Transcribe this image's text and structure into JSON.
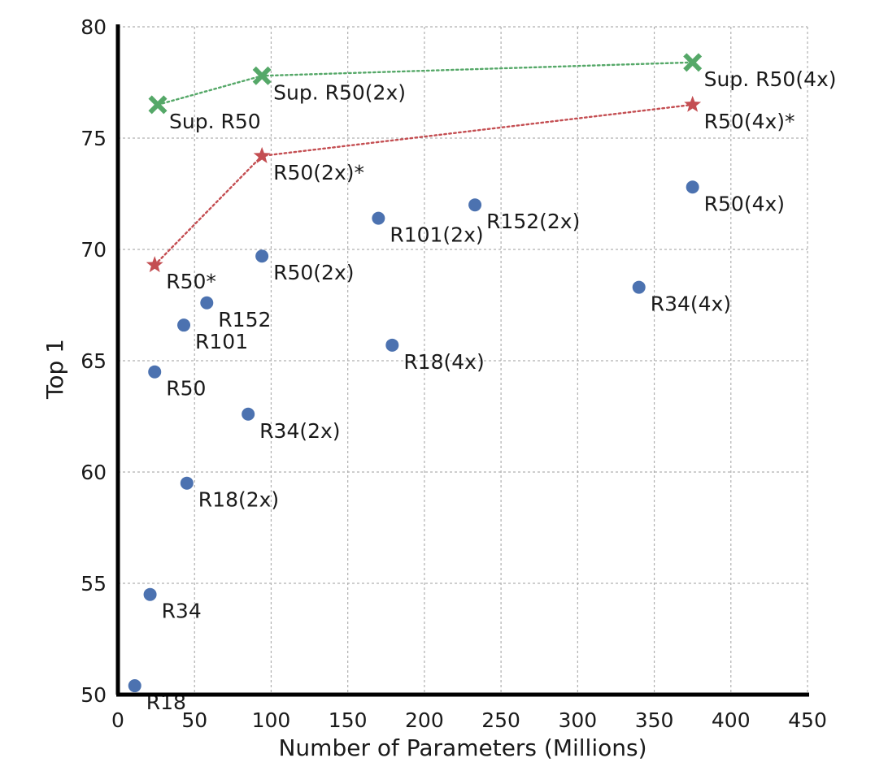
{
  "chart_data": {
    "type": "scatter",
    "title": "",
    "xlabel": "Number of Parameters (Millions)",
    "ylabel": "Top 1",
    "xlim": [
      0,
      450
    ],
    "ylim": [
      50,
      80
    ],
    "xticks": [
      0,
      50,
      100,
      150,
      200,
      250,
      300,
      350,
      400,
      450
    ],
    "yticks": [
      50,
      55,
      60,
      65,
      70,
      75,
      80
    ],
    "grid": true,
    "legend": "none",
    "series": [
      {
        "style": "circle",
        "color": "#4c72b0",
        "connected": false,
        "points": [
          {
            "label": "R18",
            "x": 11,
            "y": 50.4
          },
          {
            "label": "R34",
            "x": 21,
            "y": 54.5
          },
          {
            "label": "R50",
            "x": 24,
            "y": 64.5
          },
          {
            "label": "R101",
            "x": 43,
            "y": 66.6
          },
          {
            "label": "R152",
            "x": 58,
            "y": 67.6
          },
          {
            "label": "R18(2x)",
            "x": 45,
            "y": 59.5
          },
          {
            "label": "R34(2x)",
            "x": 85,
            "y": 62.6
          },
          {
            "label": "R50(2x)",
            "x": 94,
            "y": 69.7
          },
          {
            "label": "R101(2x)",
            "x": 170,
            "y": 71.4
          },
          {
            "label": "R152(2x)",
            "x": 233,
            "y": 72.0
          },
          {
            "label": "R18(4x)",
            "x": 179,
            "y": 65.7
          },
          {
            "label": "R34(4x)",
            "x": 340,
            "y": 68.3
          },
          {
            "label": "R50(4x)",
            "x": 375,
            "y": 72.8
          }
        ]
      },
      {
        "style": "star",
        "color": "#c44e52",
        "connected": true,
        "line_style": "dotted",
        "points": [
          {
            "label": "R50*",
            "x": 24,
            "y": 69.3
          },
          {
            "label": "R50(2x)*",
            "x": 94,
            "y": 74.2
          },
          {
            "label": "R50(4x)*",
            "x": 375,
            "y": 76.5
          }
        ]
      },
      {
        "style": "x-marker",
        "color": "#55a868",
        "connected": true,
        "line_style": "dotted",
        "points": [
          {
            "label": "Sup. R50",
            "x": 26,
            "y": 76.5
          },
          {
            "label": "Sup. R50(2x)",
            "x": 94,
            "y": 77.8
          },
          {
            "label": "Sup. R50(4x)",
            "x": 375,
            "y": 78.4
          }
        ]
      }
    ]
  }
}
